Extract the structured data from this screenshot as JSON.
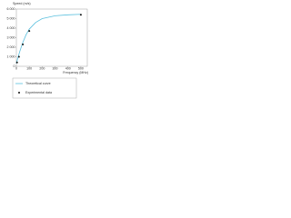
{
  "chart_data": {
    "type": "line",
    "y_label": "Speed (m/s)",
    "x_label": "Frequency (MHz)",
    "xlim": [
      0,
      550
    ],
    "ylim": [
      0,
      6000
    ],
    "yticks": [
      0,
      {
        "value": 1000,
        "label": "1 000"
      },
      {
        "value": 2000,
        "label": "2 000"
      },
      {
        "value": 3000,
        "label": "3 000"
      },
      {
        "value": 4000,
        "label": "4 000"
      },
      {
        "value": 5000,
        "label": "5 000"
      },
      {
        "value": 6000,
        "label": "6 000"
      }
    ],
    "xticks": [
      0,
      100,
      200,
      300,
      400,
      500
    ],
    "series": [
      {
        "name": "Theoretical curve",
        "type": "line",
        "color": "#5bc0de",
        "x": [
          0,
          10,
          25,
          50,
          75,
          100,
          150,
          200,
          300,
          400,
          500
        ],
        "values": [
          300,
          800,
          1500,
          2500,
          3300,
          3900,
          4600,
          5000,
          5300,
          5400,
          5450
        ]
      },
      {
        "name": "Experimental data",
        "type": "scatter",
        "color": "#111111",
        "x": [
          5,
          20,
          50,
          100,
          500
        ],
        "values": [
          400,
          1000,
          2300,
          3700,
          5400
        ]
      }
    ]
  }
}
